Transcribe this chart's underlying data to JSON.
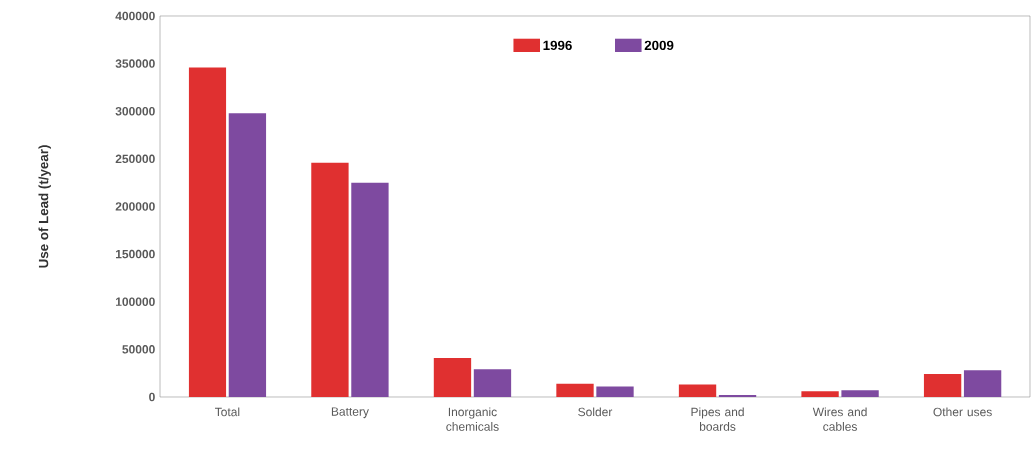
{
  "chart_data": {
    "type": "bar",
    "categories": [
      "Total",
      "Battery",
      "Inorganic chemicals",
      "Solder",
      "Pipes and boards",
      "Wires and cables",
      "Other uses"
    ],
    "series": [
      {
        "name": "1996",
        "color": "#e03030",
        "values": [
          346000,
          246000,
          41000,
          14000,
          13000,
          6000,
          24000
        ]
      },
      {
        "name": "2009",
        "color": "#7e4aa0",
        "values": [
          298000,
          225000,
          29000,
          11000,
          2000,
          7000,
          28000
        ]
      }
    ],
    "ylabel": "Use of Lead (t/year)",
    "ylim": [
      0,
      400000
    ],
    "yticks": [
      0,
      50000,
      100000,
      150000,
      200000,
      250000,
      300000,
      350000,
      400000
    ],
    "grid": false,
    "legend": "top"
  }
}
